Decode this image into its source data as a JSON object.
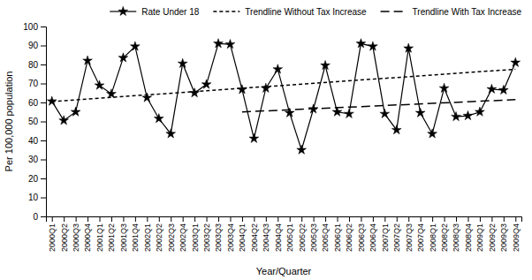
{
  "chart_data": {
    "type": "line",
    "categories": [
      "2000Q1",
      "2000Q2",
      "2000Q3",
      "2000Q4",
      "2001Q1",
      "2001Q2",
      "2001Q3",
      "2001Q4",
      "2002Q1",
      "2002Q2",
      "2002Q3",
      "2002Q4",
      "2003Q1",
      "2003Q2",
      "2003Q3",
      "2003Q4",
      "2004Q1",
      "2004Q2",
      "2004Q3",
      "2004Q4",
      "2005Q1",
      "2005Q2",
      "2005Q3",
      "2005Q4",
      "2006Q1",
      "2006Q2",
      "2006Q3",
      "2006Q4",
      "2007Q1",
      "2007Q2",
      "2007Q3",
      "2007Q4",
      "2008Q1",
      "2008Q2",
      "2008Q3",
      "2008Q4",
      "2009Q1",
      "2009Q2",
      "2009Q3",
      "2009Q4"
    ],
    "series": [
      {
        "name": "Rate Under 18",
        "color": "#000000",
        "marker": "star",
        "line_style": "solid",
        "values": [
          60.62,
          50.5,
          55.0,
          82.0,
          69.0,
          64.5,
          83.5,
          89.5,
          62.5,
          51.5,
          43.5,
          80.5,
          65.0,
          69.5,
          91.0,
          90.61,
          66.78,
          41.0,
          67.5,
          77.5,
          54.5,
          35.0,
          56.5,
          79.5,
          55.0,
          54.0,
          91.0,
          89.5,
          54.0,
          45.5,
          88.5,
          54.5,
          43.5,
          67.5,
          52.5,
          53.0,
          55.0,
          67.0,
          66.5,
          81.01
        ]
      },
      {
        "name": "Trendline Without Tax Increase",
        "color": "#000000",
        "line_style": "dashed",
        "x": [
          "2000Q1",
          "2009Q4"
        ],
        "values": [
          60.5,
          77.5
        ]
      },
      {
        "name": "Trendline With Tax Increase",
        "color": "#000000",
        "line_style": "dashed",
        "x": [
          "2004Q1",
          "2009Q4"
        ],
        "values": [
          55.0,
          61.5
        ]
      }
    ],
    "xlabel": "Year/Quarter",
    "ylabel": "Per 100,000 population",
    "ylim": [
      0,
      100
    ],
    "yticks": [
      0,
      10,
      20,
      30,
      40,
      50,
      60,
      70,
      80,
      90,
      100
    ],
    "grid": false,
    "legend": "upper right"
  }
}
